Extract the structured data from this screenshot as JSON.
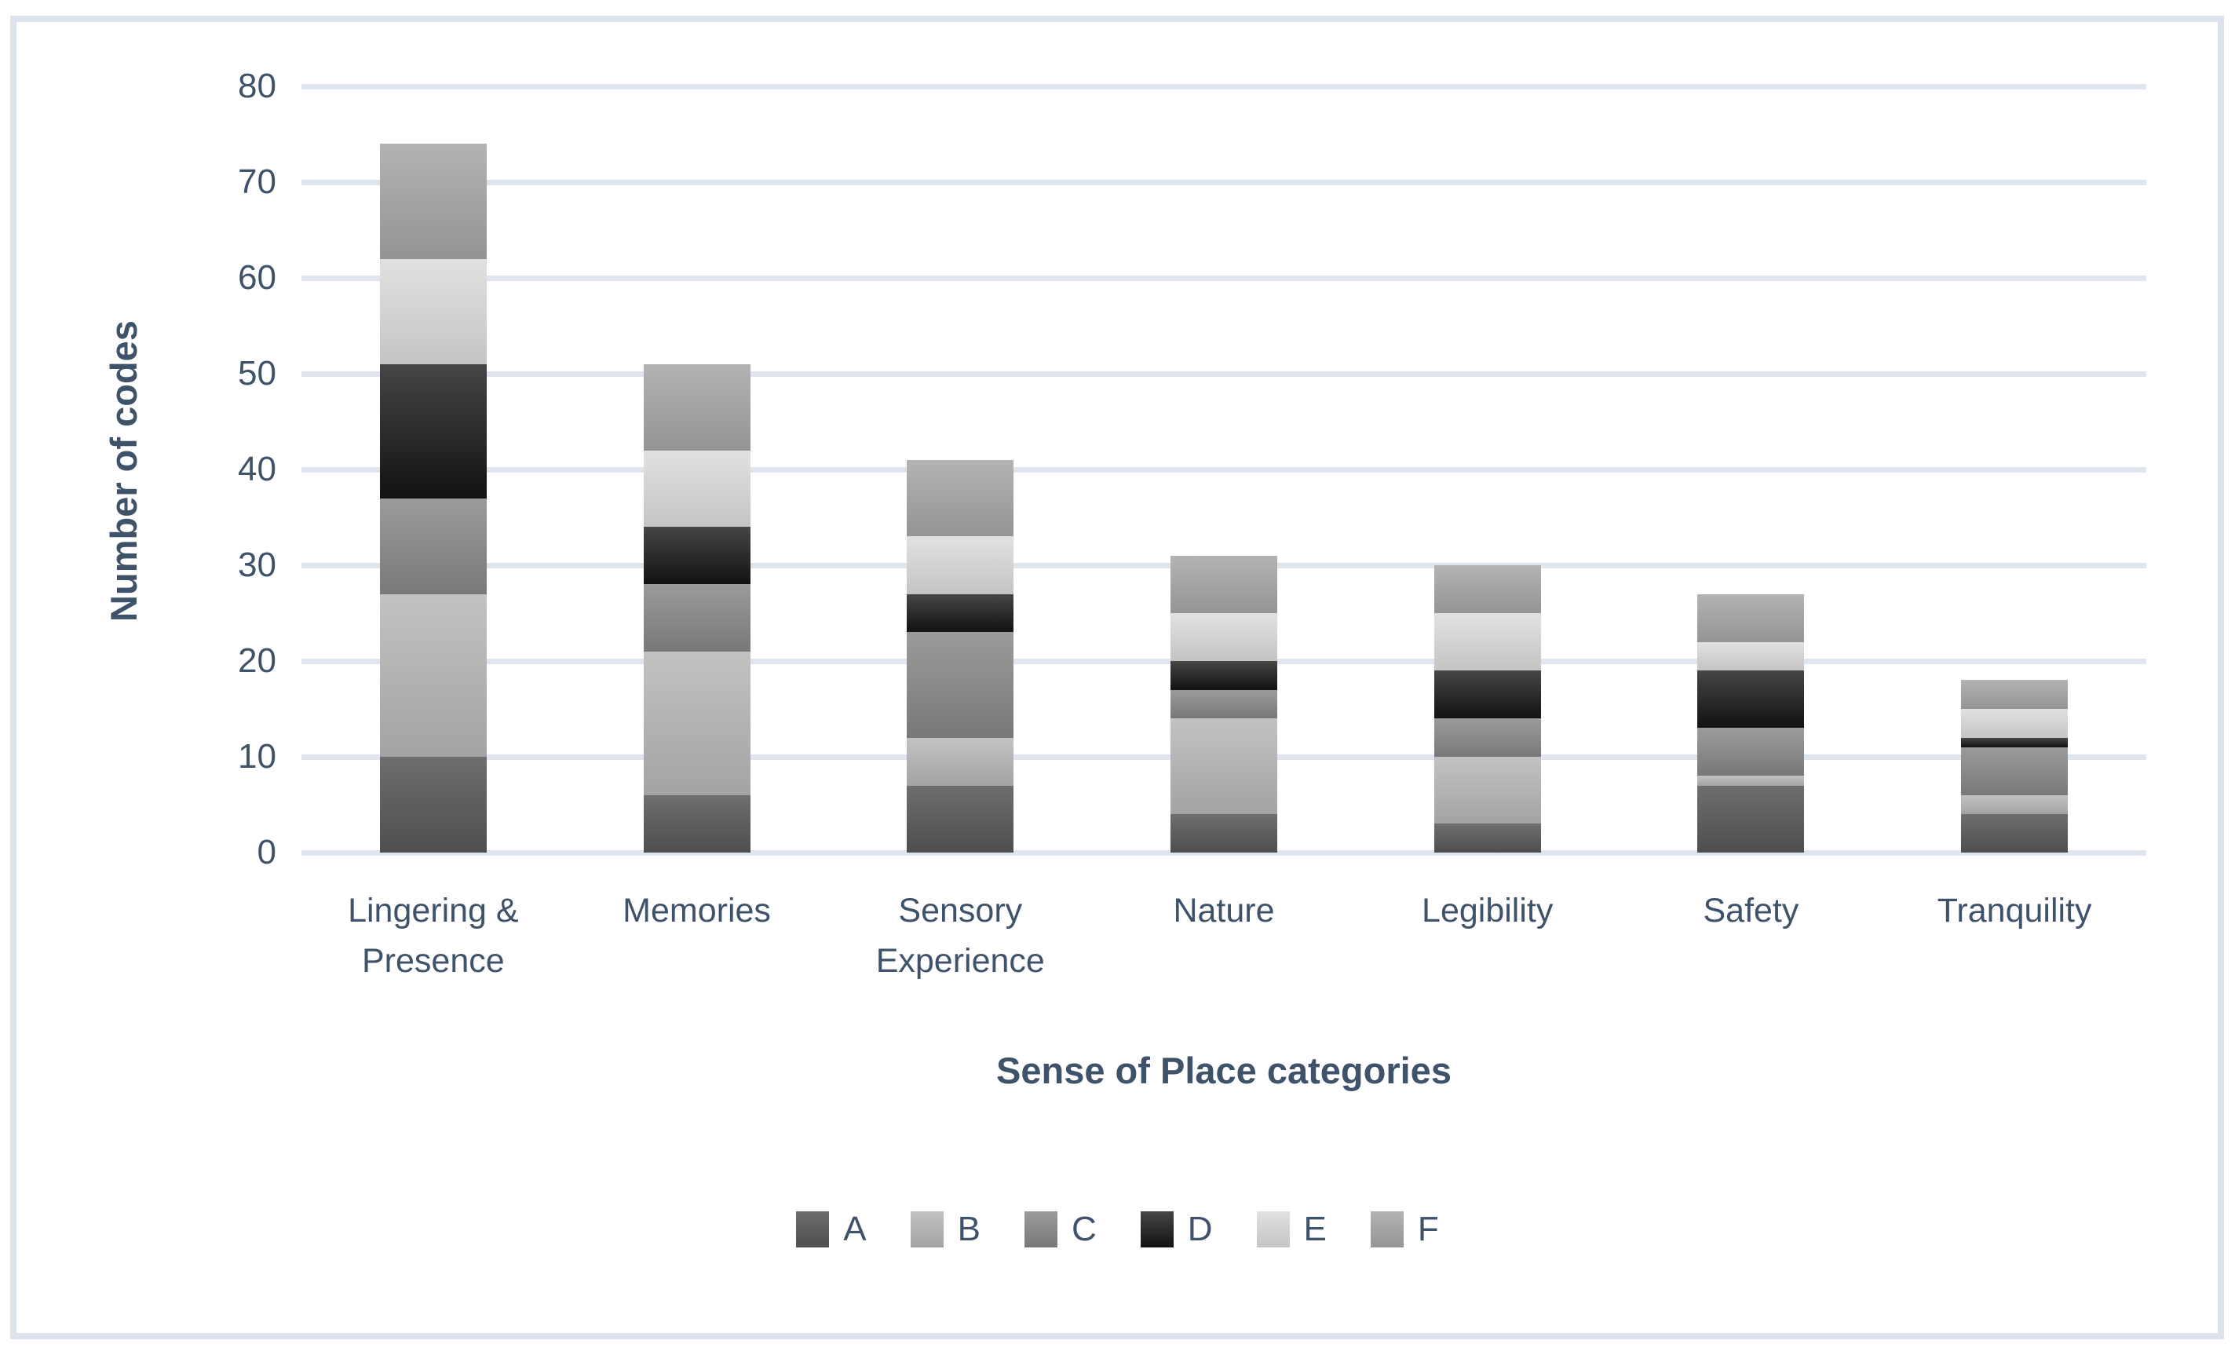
{
  "chart_data": {
    "type": "bar",
    "stacked": true,
    "title": "",
    "xlabel": "Sense of Place categories",
    "ylabel": "Number of codes",
    "ylim": [
      0,
      80
    ],
    "yticks": [
      0,
      10,
      20,
      30,
      40,
      50,
      60,
      70,
      80
    ],
    "grid": true,
    "legend_position": "bottom",
    "categories": [
      "Lingering & Presence",
      "Memories",
      "Sensory Experience",
      "Nature",
      "Legibility",
      "Safety",
      "Tranquility"
    ],
    "series": [
      {
        "name": "A",
        "color_top": "#6e6e6e",
        "color_bottom": "#4e4e4e",
        "values": [
          10,
          6,
          7,
          4,
          3,
          7,
          4
        ]
      },
      {
        "name": "B",
        "color_top": "#c2c2c2",
        "color_bottom": "#a3a3a3",
        "values": [
          17,
          15,
          5,
          10,
          7,
          1,
          2
        ]
      },
      {
        "name": "C",
        "color_top": "#9b9b9b",
        "color_bottom": "#787878",
        "values": [
          10,
          7,
          11,
          3,
          4,
          5,
          5
        ]
      },
      {
        "name": "D",
        "color_top": "#464646",
        "color_bottom": "#121212",
        "values": [
          14,
          6,
          4,
          3,
          5,
          6,
          1
        ]
      },
      {
        "name": "E",
        "color_top": "#e1e1e1",
        "color_bottom": "#c4c4c4",
        "values": [
          11,
          8,
          6,
          5,
          6,
          3,
          3
        ]
      },
      {
        "name": "F",
        "color_top": "#b3b3b3",
        "color_bottom": "#949494",
        "values": [
          12,
          9,
          8,
          6,
          5,
          5,
          3
        ]
      }
    ],
    "category_totals": [
      74,
      51,
      41,
      31,
      30,
      27,
      18
    ]
  },
  "styles": {
    "text_color": "#3e5269",
    "gridline_color": "#dfe5ee",
    "border_color": "#dde3ec",
    "background": "#ffffff"
  }
}
